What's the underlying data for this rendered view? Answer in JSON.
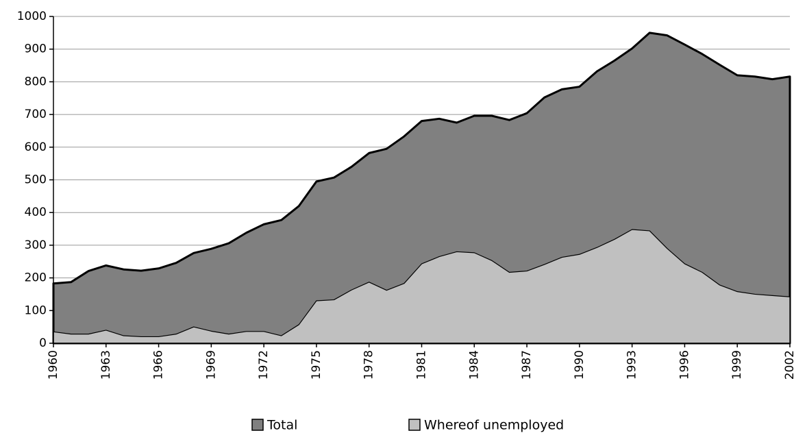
{
  "chart_data": {
    "type": "area",
    "x": [
      1960,
      1961,
      1962,
      1963,
      1964,
      1965,
      1966,
      1967,
      1968,
      1969,
      1970,
      1971,
      1972,
      1973,
      1974,
      1975,
      1976,
      1977,
      1978,
      1979,
      1980,
      1981,
      1982,
      1983,
      1984,
      1985,
      1986,
      1987,
      1988,
      1989,
      1990,
      1991,
      1992,
      1993,
      1994,
      1995,
      1996,
      1997,
      1998,
      1999,
      2000,
      2001,
      2002
    ],
    "series": [
      {
        "name": "Total",
        "color": "#808080",
        "values": [
          183,
          187,
          221,
          238,
          226,
          222,
          229,
          246,
          276,
          289,
          306,
          338,
          364,
          377,
          420,
          495,
          507,
          540,
          582,
          595,
          633,
          680,
          687,
          675,
          696,
          696,
          683,
          704,
          752,
          777,
          785,
          832,
          865,
          902,
          950,
          942,
          914,
          885,
          852,
          820,
          816,
          808,
          816
        ]
      },
      {
        "name": "Whereof unemployed",
        "color": "#c0c0c0",
        "values": [
          35,
          28,
          28,
          40,
          23,
          20,
          20,
          28,
          50,
          37,
          28,
          36,
          36,
          23,
          57,
          130,
          133,
          163,
          187,
          162,
          183,
          243,
          265,
          280,
          277,
          253,
          217,
          221,
          241,
          263,
          272,
          293,
          318,
          348,
          344,
          290,
          243,
          217,
          178,
          158,
          150,
          146,
          142
        ]
      }
    ],
    "xlim": [
      1960,
      2002
    ],
    "xticks": [
      1960,
      1963,
      1966,
      1969,
      1972,
      1975,
      1978,
      1981,
      1984,
      1987,
      1990,
      1993,
      1996,
      1999,
      2002
    ],
    "ylim": [
      0,
      1000
    ],
    "yticks": [
      0,
      100,
      200,
      300,
      400,
      500,
      600,
      700,
      800,
      900,
      1000
    ],
    "grid": true
  }
}
